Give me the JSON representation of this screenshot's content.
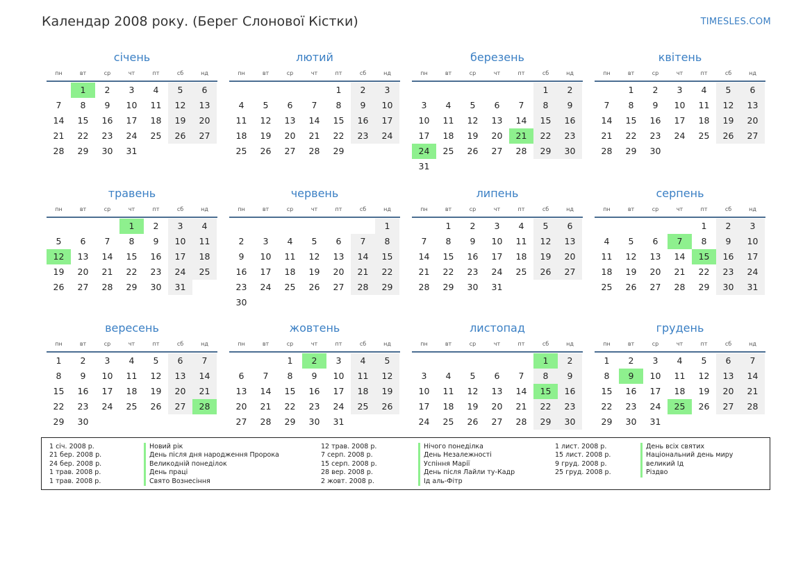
{
  "page": {
    "title": "Календар 2008 року. (Берег Слонової Кістки)",
    "site": "TIMESLES.COM"
  },
  "weekdays": [
    "пн",
    "вт",
    "ср",
    "чт",
    "пт",
    "сб",
    "нд"
  ],
  "colors": {
    "accent": "#3a7fc4",
    "holiday": "#8ef08e",
    "weekend": "#f0f0f0",
    "rule": "#4a6d91"
  },
  "months": [
    {
      "name": "січень",
      "offset": 1,
      "days": 31,
      "holidays": [
        1
      ]
    },
    {
      "name": "лютий",
      "offset": 4,
      "days": 29,
      "holidays": []
    },
    {
      "name": "березень",
      "offset": 5,
      "days": 31,
      "holidays": [
        21,
        24
      ]
    },
    {
      "name": "квітень",
      "offset": 1,
      "days": 30,
      "holidays": []
    },
    {
      "name": "травень",
      "offset": 3,
      "days": 31,
      "holidays": [
        1,
        12
      ]
    },
    {
      "name": "червень",
      "offset": 6,
      "days": 30,
      "holidays": []
    },
    {
      "name": "липень",
      "offset": 1,
      "days": 31,
      "holidays": []
    },
    {
      "name": "серпень",
      "offset": 4,
      "days": 31,
      "holidays": [
        7,
        15
      ]
    },
    {
      "name": "вересень",
      "offset": 0,
      "days": 30,
      "holidays": [
        28
      ]
    },
    {
      "name": "жовтень",
      "offset": 2,
      "days": 31,
      "holidays": [
        2
      ]
    },
    {
      "name": "листопад",
      "offset": 5,
      "days": 30,
      "holidays": [
        1,
        15
      ]
    },
    {
      "name": "грудень",
      "offset": 0,
      "days": 31,
      "holidays": [
        9,
        25
      ]
    }
  ],
  "legend": {
    "col1_dates": [
      "1 січ. 2008 р.",
      "21 бер. 2008 р.",
      "24 бер. 2008 р.",
      "1 трав. 2008 р.",
      "1 трав. 2008 р."
    ],
    "col1_names": [
      "Новий рік",
      "День після дня народження Пророка",
      "Великодній понеділок",
      "День праці",
      "Свято Вознесіння"
    ],
    "col2_dates": [
      "12 трав. 2008 р.",
      "7 серп. 2008 р.",
      "15 серп. 2008 р.",
      "28 вер. 2008 р.",
      "2 жовт. 2008 р."
    ],
    "col2_names": [
      "Нічого понеділка",
      "День Незалежності",
      "Успіння Марії",
      "День після Лайли ту-Кадр",
      "Ід аль-Фітр"
    ],
    "col3_dates": [
      "1 лист. 2008 р.",
      "15 лист. 2008 р.",
      "9 груд. 2008 р.",
      "25 груд. 2008 р."
    ],
    "col3_names": [
      "День всіх святих",
      "Національний день миру",
      "великий Ід",
      "Різдво"
    ]
  }
}
